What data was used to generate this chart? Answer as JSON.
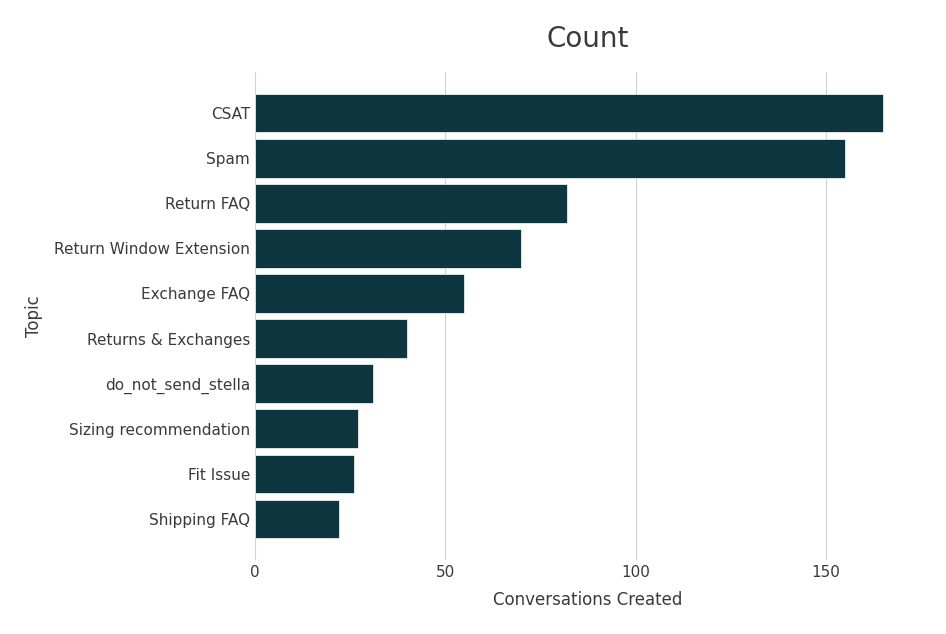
{
  "title": "Count",
  "xlabel": "Conversations Created",
  "ylabel": "Topic",
  "categories": [
    "Shipping FAQ",
    "Fit Issue",
    "Sizing recommendation",
    "do_not_send_stella",
    "Returns & Exchanges",
    "Exchange FAQ",
    "Return Window Extension",
    "Return FAQ",
    "Spam",
    "CSAT"
  ],
  "values": [
    22,
    26,
    27,
    31,
    40,
    55,
    70,
    82,
    155,
    165
  ],
  "bar_color": "#0d3640",
  "background_color": "#ffffff",
  "card_background": "#ffffff",
  "outer_background": "#f0f0f0",
  "title_fontsize": 20,
  "label_fontsize": 12,
  "tick_fontsize": 11,
  "xlim": [
    0,
    175
  ],
  "xticks": [
    0,
    50,
    100,
    150
  ],
  "text_color": "#3a3a3a",
  "grid_color": "#d0d0d0"
}
